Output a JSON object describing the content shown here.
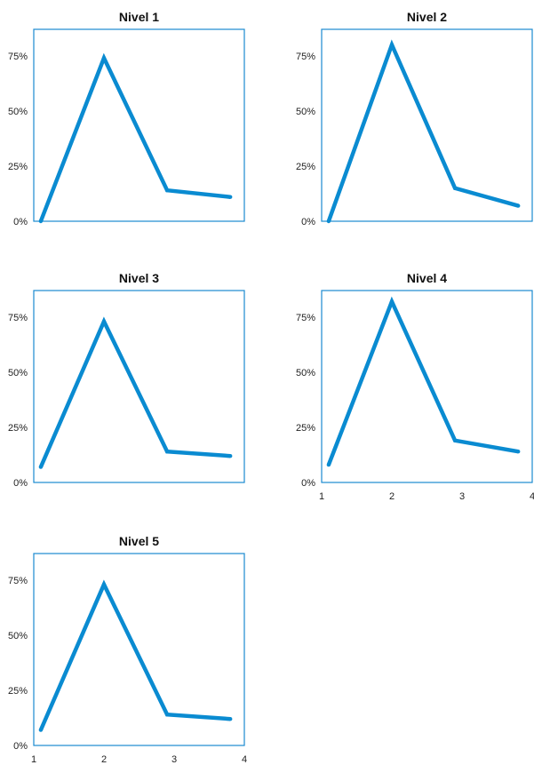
{
  "colors": {
    "line": "#0a8bd1",
    "frame": "#1a8ad0"
  },
  "chart_data": [
    {
      "type": "line",
      "title": "Nivel 1",
      "x": [
        1.1,
        2,
        2.9,
        3.8
      ],
      "values": [
        0,
        74,
        14,
        11
      ],
      "ylim": [
        0,
        87
      ],
      "xlim": [
        1,
        4
      ],
      "yticks": [
        0,
        25,
        50,
        75
      ],
      "ytick_labels": [
        "0%",
        "25%",
        "50%",
        "75%"
      ],
      "xticks": [],
      "xtick_labels": [],
      "grid": false
    },
    {
      "type": "line",
      "title": "Nivel 2",
      "x": [
        1.1,
        2,
        2.9,
        3.8
      ],
      "values": [
        0,
        80,
        15,
        7
      ],
      "ylim": [
        0,
        87
      ],
      "xlim": [
        1,
        4
      ],
      "yticks": [
        0,
        25,
        50,
        75
      ],
      "ytick_labels": [
        "0%",
        "25%",
        "50%",
        "75%"
      ],
      "xticks": [],
      "xtick_labels": [],
      "grid": false
    },
    {
      "type": "line",
      "title": "Nivel 3",
      "x": [
        1.1,
        2,
        2.9,
        3.8
      ],
      "values": [
        7,
        73,
        14,
        12
      ],
      "ylim": [
        0,
        87
      ],
      "xlim": [
        1,
        4
      ],
      "yticks": [
        0,
        25,
        50,
        75
      ],
      "ytick_labels": [
        "0%",
        "25%",
        "50%",
        "75%"
      ],
      "xticks": [],
      "xtick_labels": [],
      "grid": false
    },
    {
      "type": "line",
      "title": "Nivel 4",
      "x": [
        1.1,
        2,
        2.9,
        3.8
      ],
      "values": [
        8,
        82,
        19,
        14
      ],
      "ylim": [
        0,
        87
      ],
      "xlim": [
        1,
        4
      ],
      "yticks": [
        0,
        25,
        50,
        75
      ],
      "ytick_labels": [
        "0%",
        "25%",
        "50%",
        "75%"
      ],
      "xticks": [
        1,
        2,
        3,
        4
      ],
      "xtick_labels": [
        "1",
        "2",
        "3",
        "4"
      ],
      "grid": false
    },
    {
      "type": "line",
      "title": "Nivel 5",
      "x": [
        1.1,
        2,
        2.9,
        3.8
      ],
      "values": [
        7,
        73,
        14,
        12
      ],
      "ylim": [
        0,
        87
      ],
      "xlim": [
        1,
        4
      ],
      "yticks": [
        0,
        25,
        50,
        75
      ],
      "ytick_labels": [
        "0%",
        "25%",
        "50%",
        "75%"
      ],
      "xticks": [
        1,
        2,
        3,
        4
      ],
      "xtick_labels": [
        "1",
        "2",
        "3",
        "4"
      ],
      "grid": false
    }
  ]
}
